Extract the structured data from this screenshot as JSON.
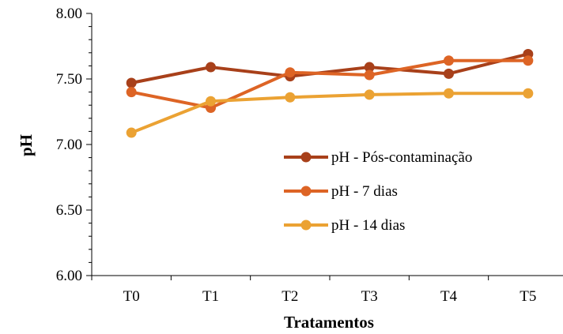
{
  "chart_data": {
    "type": "line",
    "title": "",
    "xlabel": "Tratamentos",
    "ylabel": "pH",
    "categories": [
      "T0",
      "T1",
      "T2",
      "T3",
      "T4",
      "T5"
    ],
    "ylim": [
      6.0,
      8.0
    ],
    "yticks": [
      "6.00",
      "6.50",
      "7.00",
      "7.50",
      "8.00"
    ],
    "grid": false,
    "legend_position": "center-right",
    "series": [
      {
        "name": "pH - Pós-contaminação",
        "color": "#A8401A",
        "values": [
          7.47,
          7.59,
          7.52,
          7.59,
          7.54,
          7.69
        ]
      },
      {
        "name": "pH - 7 dias",
        "color": "#DD6425",
        "values": [
          7.4,
          7.28,
          7.55,
          7.53,
          7.64,
          7.64
        ]
      },
      {
        "name": "pH - 14 dias",
        "color": "#EBA233",
        "values": [
          7.09,
          7.33,
          7.36,
          7.38,
          7.39,
          7.39
        ]
      }
    ]
  }
}
